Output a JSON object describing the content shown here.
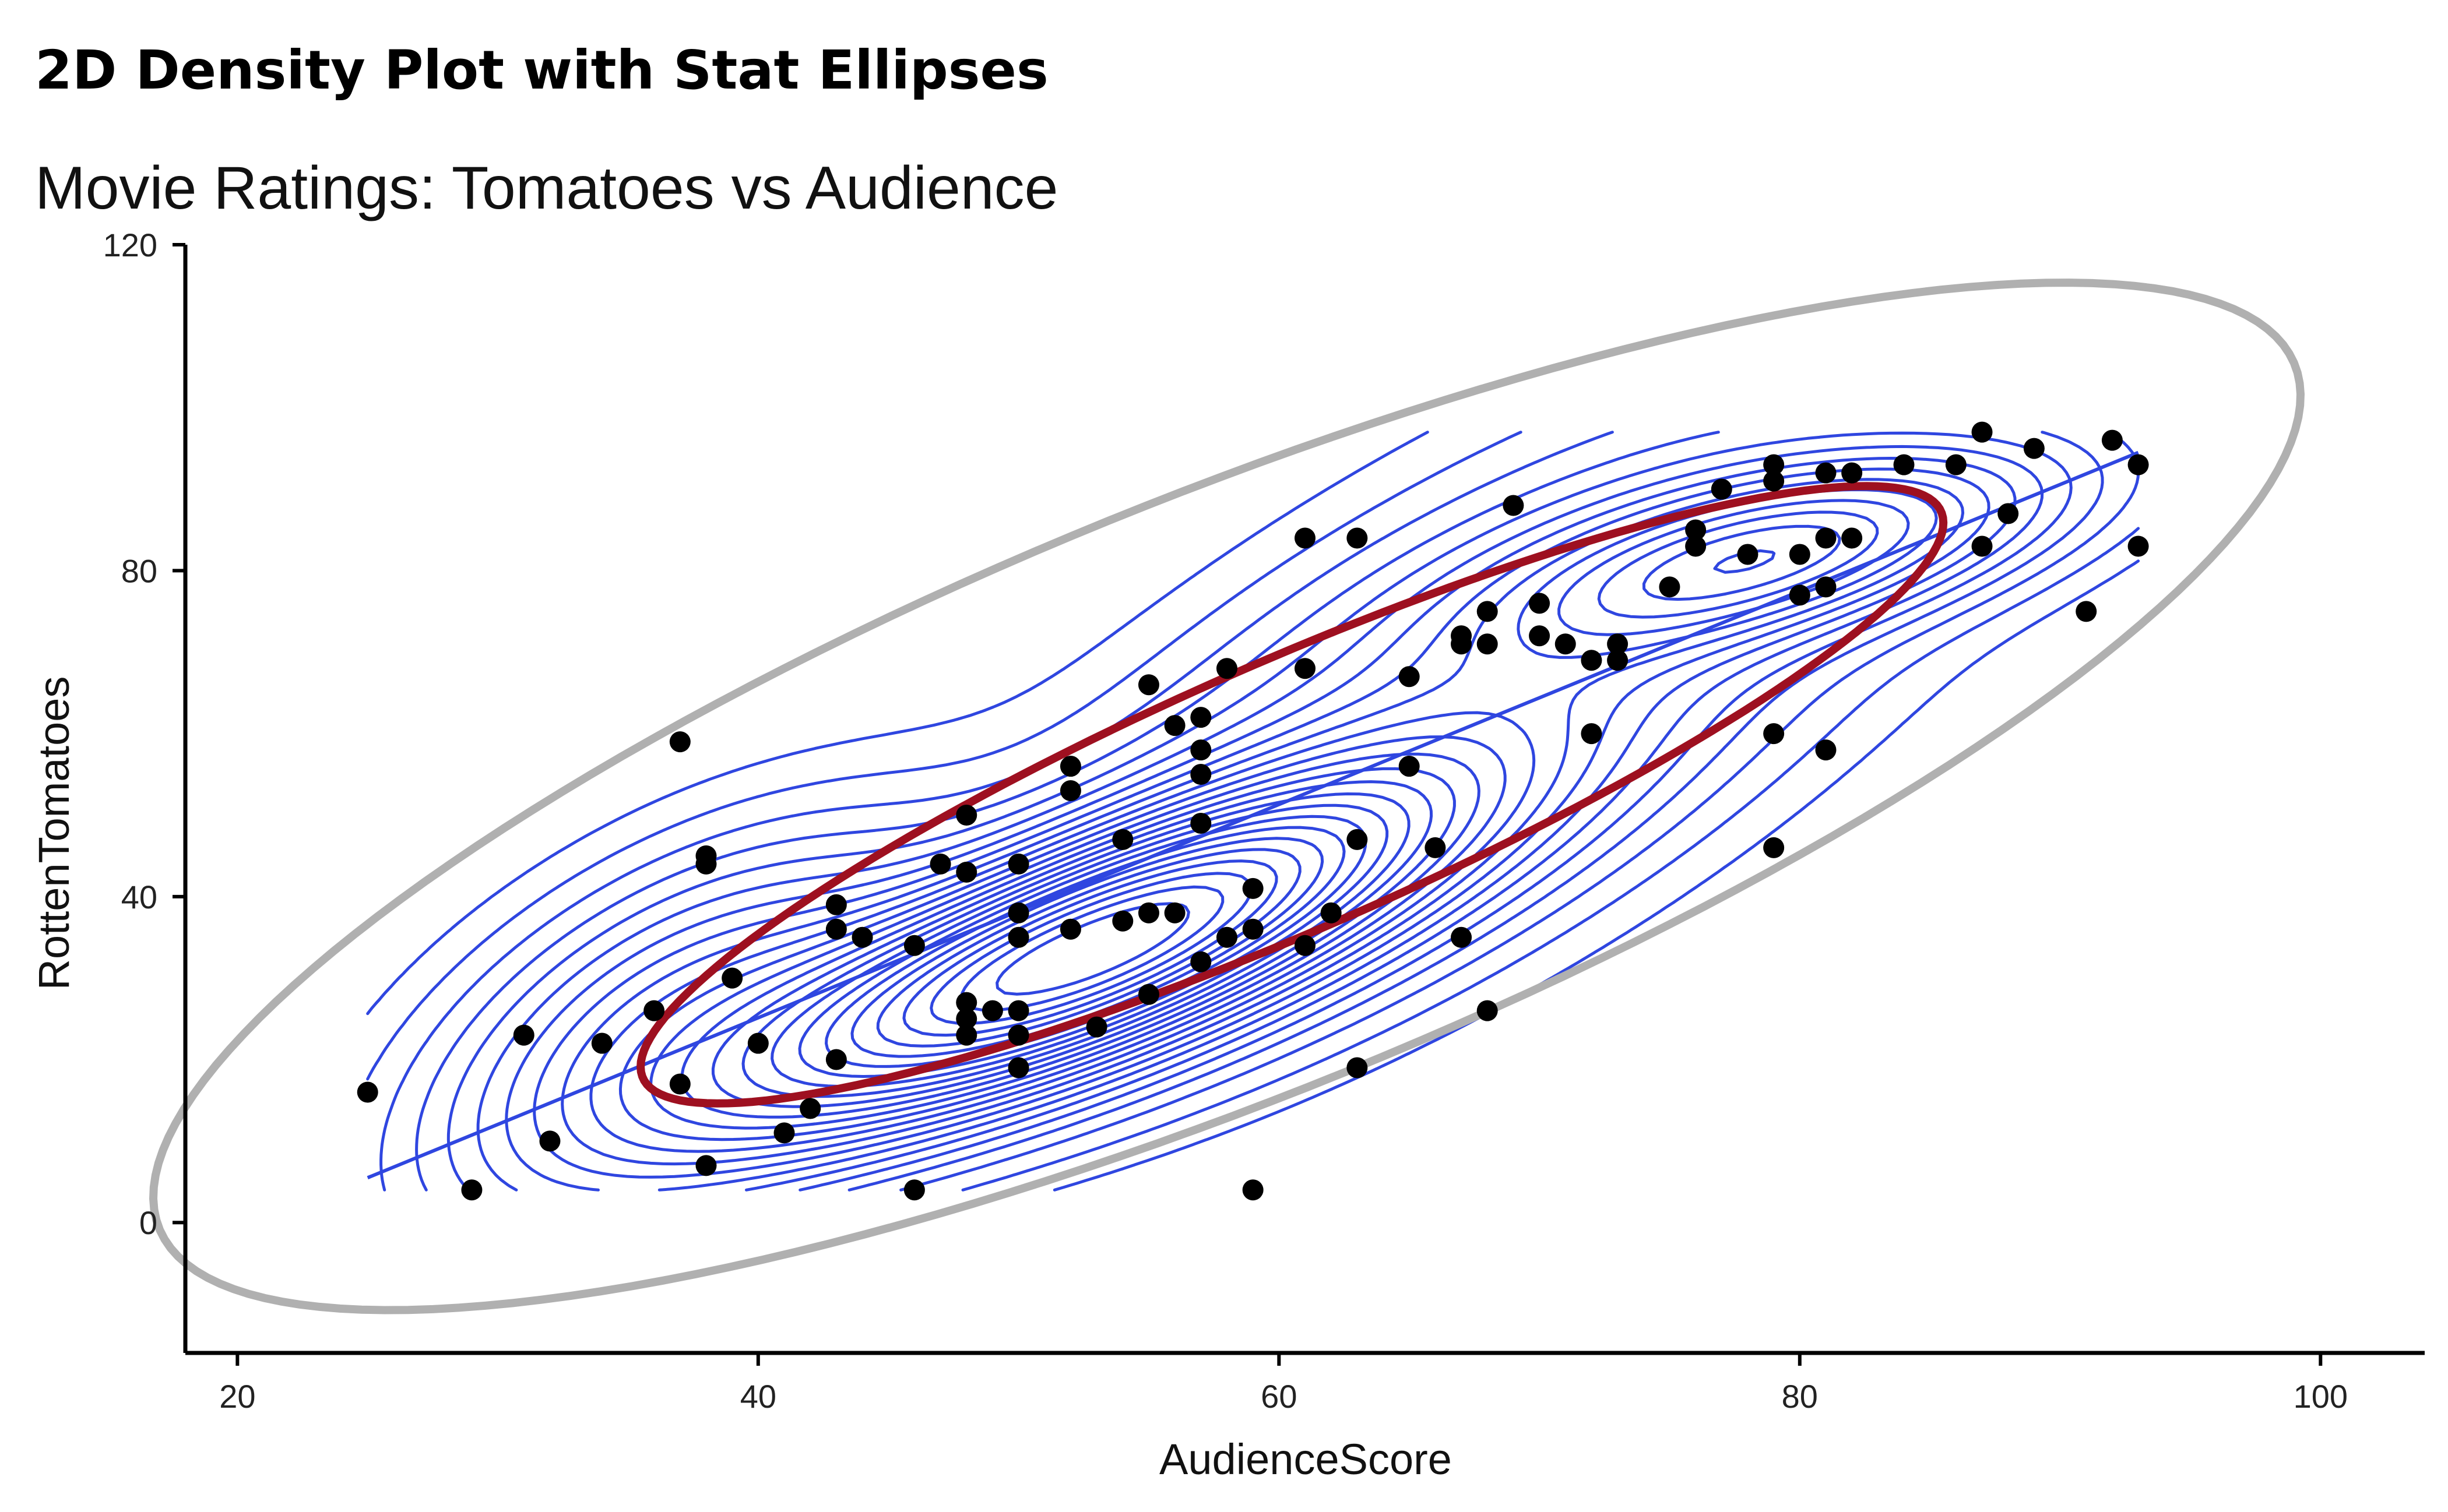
{
  "chart_data": {
    "type": "scatter",
    "title": "2D Density Plot with Stat Ellipses",
    "subtitle": "Movie Ratings: Tomatoes vs Audience",
    "xlabel": "AudienceScore",
    "ylabel": "RottenTomatoes",
    "xlim": [
      18,
      104
    ],
    "ylim": [
      -16,
      120
    ],
    "x_ticks": [
      20,
      40,
      60,
      80,
      100
    ],
    "y_ticks": [
      0,
      40,
      80,
      120
    ],
    "grid": false,
    "points": [
      [
        25,
        16
      ],
      [
        29,
        4
      ],
      [
        31,
        23
      ],
      [
        32,
        10
      ],
      [
        34,
        22
      ],
      [
        36,
        26
      ],
      [
        37,
        17
      ],
      [
        37,
        59
      ],
      [
        38,
        45
      ],
      [
        38,
        44
      ],
      [
        38,
        7
      ],
      [
        39,
        30
      ],
      [
        40,
        22
      ],
      [
        41,
        11
      ],
      [
        42,
        14
      ],
      [
        43,
        39
      ],
      [
        43,
        36
      ],
      [
        43,
        20
      ],
      [
        44,
        35
      ],
      [
        46,
        34
      ],
      [
        46,
        4
      ],
      [
        47,
        44
      ],
      [
        48,
        50
      ],
      [
        48,
        43
      ],
      [
        48,
        27
      ],
      [
        48,
        25
      ],
      [
        48,
        23
      ],
      [
        49,
        26
      ],
      [
        50,
        44
      ],
      [
        50,
        38
      ],
      [
        50,
        35
      ],
      [
        50,
        26
      ],
      [
        50,
        23
      ],
      [
        50,
        19
      ],
      [
        52,
        56
      ],
      [
        52,
        53
      ],
      [
        52,
        36
      ],
      [
        53,
        24
      ],
      [
        54,
        47
      ],
      [
        54,
        37
      ],
      [
        55,
        66
      ],
      [
        55,
        38
      ],
      [
        55,
        28
      ],
      [
        56,
        61
      ],
      [
        56,
        38
      ],
      [
        57,
        62
      ],
      [
        57,
        58
      ],
      [
        57,
        55
      ],
      [
        57,
        49
      ],
      [
        57,
        32
      ],
      [
        58,
        68
      ],
      [
        58,
        35
      ],
      [
        59,
        41
      ],
      [
        59,
        36
      ],
      [
        59,
        4
      ],
      [
        61,
        84
      ],
      [
        61,
        68
      ],
      [
        61,
        34
      ],
      [
        62,
        38
      ],
      [
        63,
        84
      ],
      [
        63,
        47
      ],
      [
        63,
        19
      ],
      [
        65,
        67
      ],
      [
        65,
        56
      ],
      [
        66,
        46
      ],
      [
        67,
        72
      ],
      [
        67,
        71
      ],
      [
        67,
        35
      ],
      [
        68,
        75
      ],
      [
        68,
        71
      ],
      [
        68,
        26
      ],
      [
        69,
        88
      ],
      [
        70,
        76
      ],
      [
        70,
        72
      ],
      [
        71,
        71
      ],
      [
        72,
        69
      ],
      [
        72,
        60
      ],
      [
        73,
        71
      ],
      [
        73,
        69
      ],
      [
        75,
        78
      ],
      [
        76,
        85
      ],
      [
        76,
        83
      ],
      [
        77,
        90
      ],
      [
        78,
        82
      ],
      [
        79,
        93
      ],
      [
        79,
        91
      ],
      [
        79,
        60
      ],
      [
        79,
        46
      ],
      [
        80,
        82
      ],
      [
        80,
        77
      ],
      [
        81,
        92
      ],
      [
        81,
        84
      ],
      [
        81,
        78
      ],
      [
        81,
        58
      ],
      [
        82,
        92
      ],
      [
        82,
        84
      ],
      [
        84,
        93
      ],
      [
        86,
        93
      ],
      [
        87,
        97
      ],
      [
        87,
        83
      ],
      [
        88,
        87
      ],
      [
        89,
        95
      ],
      [
        91,
        75
      ],
      [
        92,
        96
      ],
      [
        93,
        93
      ],
      [
        93,
        83
      ]
    ],
    "regression_line": {
      "x": [
        25,
        93
      ],
      "y": [
        5.5,
        94.5
      ]
    },
    "inner_ellipse": {
      "cx": 60.5,
      "cy": 52.5,
      "semi_major_x": 23.5,
      "semi_major_y": 37.5,
      "semi_minor": 4.6
    },
    "outer_ellipse": {
      "cx": 58,
      "cy": 52.3,
      "semi_major_x": 36.3,
      "semi_major_y": 62,
      "semi_minor": 10.3
    },
    "density_peaks": [
      {
        "x": 52.5,
        "y": 33,
        "sx": 8.5,
        "sy": 13,
        "rho": 0.78,
        "weight": 1.0
      },
      {
        "x": 79,
        "y": 82,
        "sx": 6.5,
        "sy": 7.5,
        "rho": 0.6,
        "weight": 0.33
      },
      {
        "x": 37,
        "y": 24,
        "sx": 6,
        "sy": 14,
        "rho": 0.55,
        "weight": 0.22
      },
      {
        "x": 67,
        "y": 62,
        "sx": 11,
        "sy": 24,
        "rho": 0.75,
        "weight": 0.16
      }
    ],
    "density_levels": 24,
    "density_domain": {
      "x": [
        25,
        93
      ],
      "y": [
        4,
        97
      ]
    },
    "colors": {
      "points": "#000000",
      "density": "#2f46e0",
      "regression": "#2f46e0",
      "inner_ellipse": "#9e1020",
      "outer_ellipse": "#b0b0b0",
      "axis": "#000000"
    }
  }
}
